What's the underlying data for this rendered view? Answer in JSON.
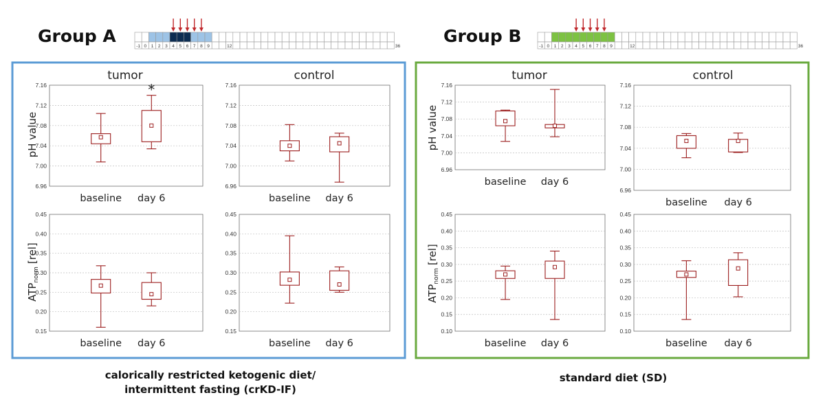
{
  "colors": {
    "box": "#9b1c1c",
    "arrow": "#c0282c",
    "groupA_frame": "#5b9bd5",
    "groupB_frame": "#6aaa3f",
    "groupA_fill_light": "#9dc3e6",
    "groupA_fill_dark": "#0d2d52",
    "groupB_fill": "#7dc242",
    "grid": "#bdbdbd"
  },
  "groups": [
    {
      "title": "Group A",
      "caption_lines": [
        "calorically restricted ketogenic diet/",
        "intermittent fasting (crKD-IF)"
      ],
      "timeline": {
        "ticks": [
          "-1",
          "0",
          "1",
          "2",
          "3",
          "4",
          "5",
          "6",
          "7",
          "8",
          "9",
          "12",
          "36"
        ],
        "light_fill_days": [
          1,
          2,
          3,
          7,
          8,
          9
        ],
        "dark_fill_days": [
          4,
          5,
          6
        ],
        "arrow_days": [
          4,
          5,
          6,
          7,
          8
        ]
      }
    },
    {
      "title": "Group B",
      "caption_lines": [
        "standard diet (SD)"
      ],
      "timeline": {
        "ticks": [
          "-1",
          "0",
          "1",
          "2",
          "3",
          "4",
          "5",
          "6",
          "7",
          "8",
          "9",
          "12",
          "36"
        ],
        "light_fill_days": [
          1,
          2,
          3,
          4,
          5,
          6,
          7,
          8,
          9
        ],
        "dark_fill_days": [],
        "arrow_days": [
          4,
          5,
          6,
          7,
          8
        ]
      }
    }
  ],
  "y_labels": {
    "ph": "pH value",
    "atp_main": "ATP",
    "atp_sub": "norm",
    "atp_unit": "[rel]"
  },
  "chart_data": [
    {
      "type": "box",
      "group": "Group A",
      "title": "tumor",
      "categories": [
        "baseline",
        "day 6"
      ],
      "ylim": [
        6.96,
        7.16
      ],
      "yticks": [
        "7.16",
        "7.12",
        "7.08",
        "7.04",
        "7.00",
        "6.96"
      ],
      "boxes": [
        {
          "min": 7.008,
          "q1": 7.044,
          "mean": 7.057,
          "q3": 7.064,
          "max": 7.104
        },
        {
          "min": 7.034,
          "q1": 7.048,
          "mean": 7.08,
          "q3": 7.11,
          "max": 7.14
        }
      ],
      "annotation": "*"
    },
    {
      "type": "box",
      "group": "Group A",
      "title": "control",
      "categories": [
        "baseline",
        "day 6"
      ],
      "ylim": [
        6.96,
        7.16
      ],
      "yticks": [
        "7.16",
        "7.12",
        "7.08",
        "7.04",
        "7.00",
        "6.96"
      ],
      "boxes": [
        {
          "min": 7.01,
          "q1": 7.03,
          "mean": 7.04,
          "q3": 7.05,
          "max": 7.082
        },
        {
          "min": 6.968,
          "q1": 7.028,
          "mean": 7.045,
          "q3": 7.058,
          "max": 7.065
        }
      ]
    },
    {
      "type": "box",
      "group": "Group A",
      "title": "",
      "categories": [
        "baseline",
        "day 6"
      ],
      "ylim": [
        0.15,
        0.45
      ],
      "yticks": [
        "0.45",
        "0.40",
        "0.35",
        "0.30",
        "0.25",
        "0.20",
        "0.15"
      ],
      "boxes": [
        {
          "min": 0.16,
          "q1": 0.248,
          "mean": 0.267,
          "q3": 0.283,
          "max": 0.318
        },
        {
          "min": 0.215,
          "q1": 0.232,
          "mean": 0.245,
          "q3": 0.275,
          "max": 0.3
        }
      ]
    },
    {
      "type": "box",
      "group": "Group A",
      "title": "",
      "categories": [
        "baseline",
        "day 6"
      ],
      "ylim": [
        0.15,
        0.45
      ],
      "yticks": [
        "0.45",
        "0.40",
        "0.35",
        "0.30",
        "0.25",
        "0.20",
        "0.15"
      ],
      "boxes": [
        {
          "min": 0.222,
          "q1": 0.268,
          "mean": 0.282,
          "q3": 0.302,
          "max": 0.395
        },
        {
          "min": 0.25,
          "q1": 0.255,
          "mean": 0.27,
          "q3": 0.305,
          "max": 0.315
        }
      ]
    },
    {
      "type": "box",
      "group": "Group B",
      "title": "tumor",
      "categories": [
        "baseline",
        "day 6"
      ],
      "ylim": [
        6.96,
        7.16
      ],
      "yticks": [
        "7.16",
        "7.12",
        "7.08",
        "7.04",
        "7.00",
        "6.96"
      ],
      "boxes": [
        {
          "min": 7.027,
          "q1": 7.064,
          "mean": 7.075,
          "q3": 7.099,
          "max": 7.101
        },
        {
          "min": 7.038,
          "q1": 7.059,
          "mean": 7.064,
          "q3": 7.067,
          "max": 7.15
        }
      ]
    },
    {
      "type": "box",
      "group": "Group B",
      "title": "control",
      "categories": [
        "baseline",
        "day 6"
      ],
      "ylim": [
        6.96,
        7.16
      ],
      "yticks": [
        "7.16",
        "7.12",
        "7.08",
        "7.04",
        "7.00",
        "6.96"
      ],
      "boxes": [
        {
          "min": 7.022,
          "q1": 7.04,
          "mean": 7.054,
          "q3": 7.064,
          "max": 7.068
        },
        {
          "min": 7.032,
          "q1": 7.033,
          "mean": 7.054,
          "q3": 7.057,
          "max": 7.069
        }
      ]
    },
    {
      "type": "box",
      "group": "Group B",
      "title": "",
      "categories": [
        "baseline",
        "day 6"
      ],
      "ylim": [
        0.1,
        0.45
      ],
      "yticks": [
        "0.45",
        "0.40",
        "0.35",
        "0.30",
        "0.25",
        "0.20",
        "0.15",
        "0.10"
      ],
      "boxes": [
        {
          "min": 0.195,
          "q1": 0.258,
          "mean": 0.27,
          "q3": 0.281,
          "max": 0.295
        },
        {
          "min": 0.135,
          "q1": 0.258,
          "mean": 0.292,
          "q3": 0.31,
          "max": 0.34
        }
      ]
    },
    {
      "type": "box",
      "group": "Group B",
      "title": "",
      "categories": [
        "baseline",
        "day 6"
      ],
      "ylim": [
        0.1,
        0.45
      ],
      "yticks": [
        "0.45",
        "0.40",
        "0.35",
        "0.30",
        "0.25",
        "0.20",
        "0.15",
        "0.10"
      ],
      "boxes": [
        {
          "min": 0.135,
          "q1": 0.261,
          "mean": 0.27,
          "q3": 0.28,
          "max": 0.311
        },
        {
          "min": 0.203,
          "q1": 0.237,
          "mean": 0.288,
          "q3": 0.314,
          "max": 0.335
        }
      ]
    }
  ]
}
